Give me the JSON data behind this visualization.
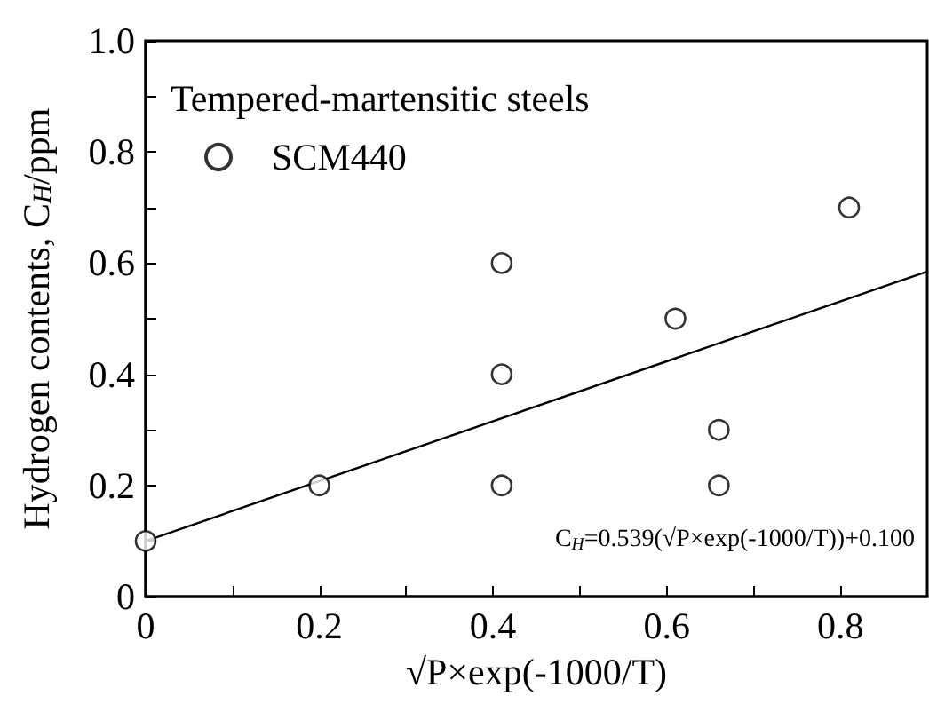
{
  "chart_data": {
    "type": "scatter",
    "xlabel": "√P×exp(-1000/T)",
    "ylabel": "Hydrogen contents, C$_{H}$/ppm",
    "legend_title": "Tempered-martensitic steels",
    "legend": "top left",
    "annotations": [
      "C$_{H}$=0.539(√P×exp(-1000/T))+0.100"
    ],
    "xlim": [
      0,
      0.9
    ],
    "ylim": [
      0,
      1.0
    ],
    "xticks": [
      {
        "value": 0,
        "label": "0"
      },
      {
        "value": 0.1,
        "label": null
      },
      {
        "value": 0.2,
        "label": "0.2"
      },
      {
        "value": 0.3,
        "label": null
      },
      {
        "value": 0.4,
        "label": "0.4"
      },
      {
        "value": 0.5,
        "label": null
      },
      {
        "value": 0.6,
        "label": "0.6"
      },
      {
        "value": 0.7,
        "label": null
      },
      {
        "value": 0.8,
        "label": "0.8"
      }
    ],
    "yticks": [
      {
        "value": 0,
        "label": "0"
      },
      {
        "value": 0.1,
        "label": null
      },
      {
        "value": 0.2,
        "label": "0.2"
      },
      {
        "value": 0.3,
        "label": null
      },
      {
        "value": 0.4,
        "label": "0.4"
      },
      {
        "value": 0.5,
        "label": null
      },
      {
        "value": 0.6,
        "label": "0.6"
      },
      {
        "value": 0.7,
        "label": null
      },
      {
        "value": 0.8,
        "label": "0.8"
      },
      {
        "value": 0.9,
        "label": null
      },
      {
        "value": 1.0,
        "label": "1.0"
      }
    ],
    "grid": false,
    "series": [
      {
        "type": "scatter",
        "name": "SCM440",
        "color": "#000000",
        "marker": "circle",
        "x": [
          0,
          0.2,
          0.41,
          0.41,
          0.41,
          0.61,
          0.66,
          0.66,
          0.81
        ],
        "values": [
          0.1,
          0.2,
          0.6,
          0.4,
          0.2,
          0.5,
          0.3,
          0.2,
          0.7
        ]
      },
      {
        "type": "line",
        "color": "#000000",
        "marker": "none",
        "line_style": "solid",
        "x": [
          0,
          0.9
        ],
        "values": [
          0.1,
          0.585
        ]
      }
    ]
  }
}
